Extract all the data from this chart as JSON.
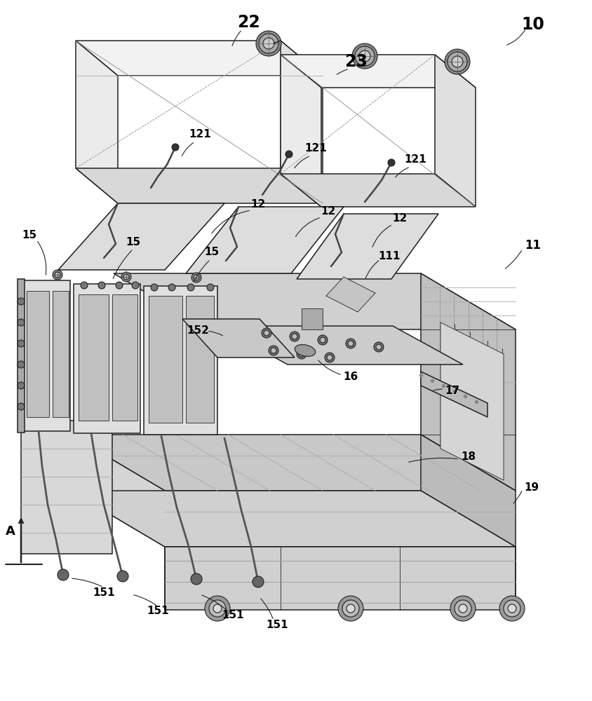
{
  "bg_color": "#ffffff",
  "lc": "#222222",
  "figsize": [
    8.44,
    10.0
  ],
  "dpi": 100,
  "lw1": 1.1,
  "lw0": 0.6,
  "lw2": 1.8,
  "lwt": 2.0
}
